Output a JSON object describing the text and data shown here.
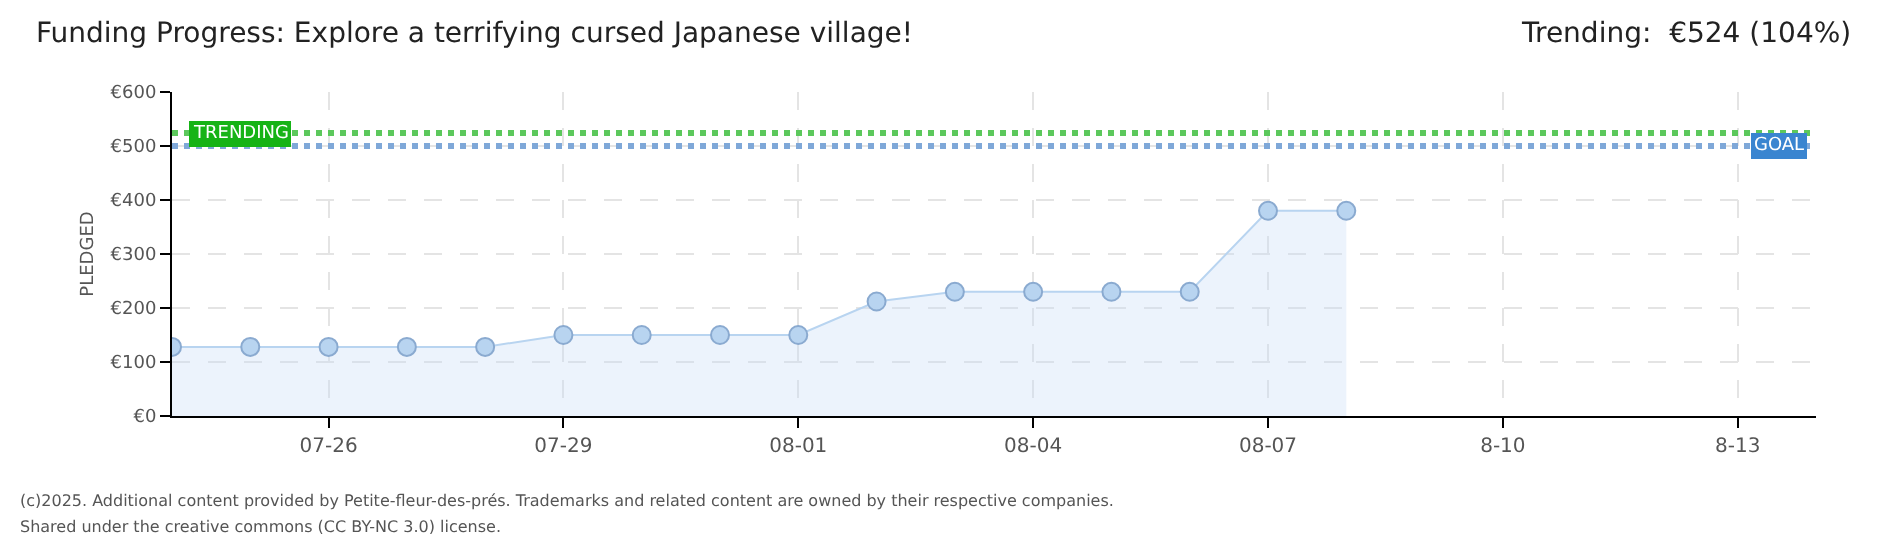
{
  "chart_data": {
    "type": "area",
    "title": "Funding Progress: Explore a terrifying cursed Japanese village!",
    "subtitle": "Trending:  €524 (104%)",
    "ylabel": "PLEDGED",
    "x": [
      "--07-24",
      "--07-25",
      "--07-26",
      "--07-27",
      "--07-28",
      "--07-29",
      "--07-30",
      "--07-31",
      "--08-01",
      "--08-02",
      "--08-03",
      "--08-04",
      "--08-05",
      "--08-06",
      "--08-07",
      "--08-08"
    ],
    "series": [
      {
        "color": "#b8d4f0",
        "values": [
          128,
          128,
          128,
          128,
          128,
          150,
          150,
          150,
          150,
          212,
          230,
          230,
          230,
          230,
          380,
          380
        ]
      }
    ],
    "xlim": [
      "--07-24",
      "--08-14"
    ],
    "xticks": [
      {
        "value": "--07-26",
        "label": "07-26"
      },
      {
        "value": "--07-29",
        "label": "07-29"
      },
      {
        "value": "--08-01",
        "label": "08-01"
      },
      {
        "value": "--08-04",
        "label": "08-04"
      },
      {
        "value": "--08-07",
        "label": "08-07"
      },
      {
        "value": "--08-10",
        "label": "8-10"
      },
      {
        "value": "--08-13",
        "label": "8-13"
      }
    ],
    "ylim": [
      0,
      600
    ],
    "yticks": [
      {
        "value": 0,
        "label": "€0"
      },
      {
        "value": 100,
        "label": "€100"
      },
      {
        "value": 200,
        "label": "€200"
      },
      {
        "value": 300,
        "label": "€300"
      },
      {
        "value": 400,
        "label": "€400"
      },
      {
        "value": 500,
        "label": "€500"
      },
      {
        "value": 600,
        "label": "€600"
      }
    ],
    "ref_lines": [
      {
        "axis": "y",
        "value": 524,
        "label": "TRENDING",
        "color": "#5cc85c",
        "line_style": "dotted"
      },
      {
        "axis": "y",
        "value": 500,
        "label": "GOAL",
        "color": "#7fa8d8",
        "line_style": "dotted"
      }
    ],
    "grid": true,
    "marker": "circle",
    "annotations": [
      "(c)2025. Additional content provided by Petite-fleur-des-prés. Trademarks and related content are owned by their respective companies.",
      "Shared under the creative commons (CC BY-NC 3.0) license."
    ]
  }
}
